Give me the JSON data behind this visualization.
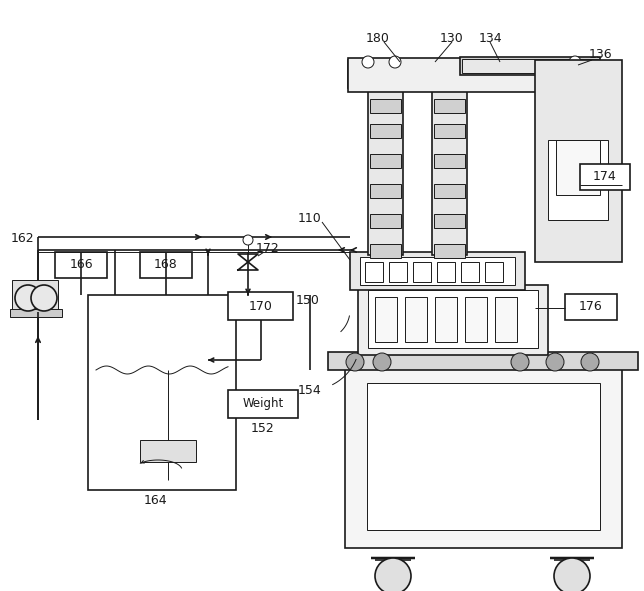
{
  "bg_color": "#ffffff",
  "lc": "#1a1a1a",
  "lw": 1.2,
  "lw_t": 0.7,
  "figsize": [
    6.44,
    5.91
  ],
  "dpi": 100
}
